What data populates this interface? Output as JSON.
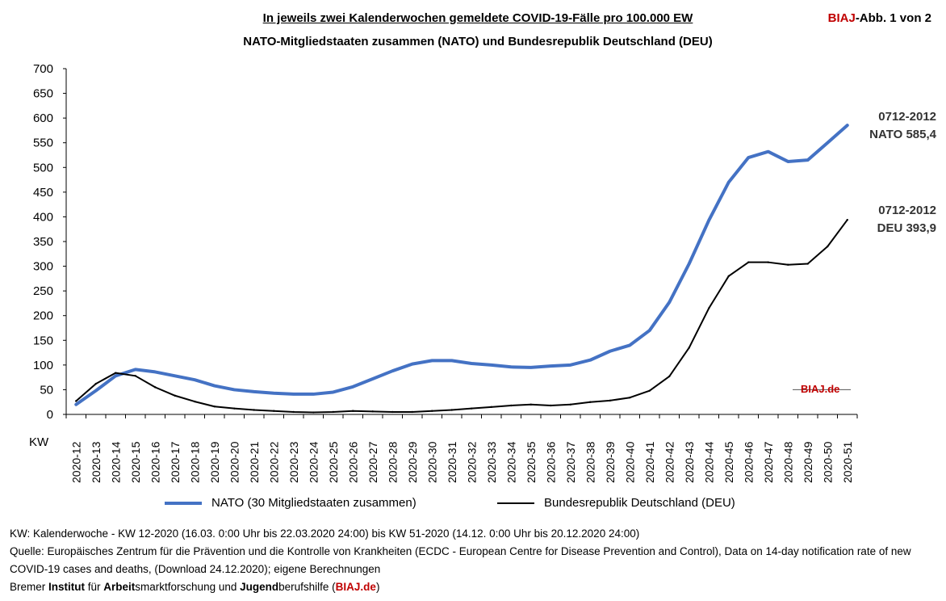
{
  "header": {
    "title": "In jeweils zwei Kalenderwochen gemeldete COVID-19-Fälle pro 100.000 EW",
    "subtitle": "NATO-Mitgliedstaaten zusammen (NATO) und Bundesrepublik Deutschland (DEU)",
    "badge_brand": "BIAJ",
    "badge_rest": "-Abb. 1 von 2"
  },
  "chart_data": {
    "type": "line",
    "title": "In jeweils zwei Kalenderwochen gemeldete COVID-19-Fälle pro 100.000 EW",
    "subtitle": "NATO-Mitgliedstaaten zusammen (NATO) und Bundesrepublik Deutschland (DEU)",
    "xlabel": "KW",
    "ylabel": "",
    "ylim": [
      0,
      700
    ],
    "yticks": [
      0,
      50,
      100,
      150,
      200,
      250,
      300,
      350,
      400,
      450,
      500,
      550,
      600,
      650,
      700
    ],
    "grid": false,
    "legend_position": "bottom",
    "x": [
      "2020-12",
      "2020-13",
      "2020-14",
      "2020-15",
      "2020-16",
      "2020-17",
      "2020-18",
      "2020-19",
      "2020-20",
      "2020-21",
      "2020-22",
      "2020-23",
      "2020-24",
      "2020-25",
      "2020-26",
      "2020-27",
      "2020-28",
      "2020-29",
      "2020-30",
      "2020-31",
      "2020-32",
      "2020-33",
      "2020-34",
      "2020-35",
      "2020-36",
      "2020-37",
      "2020-38",
      "2020-39",
      "2020-40",
      "2020-41",
      "2020-42",
      "2020-43",
      "2020-44",
      "2020-45",
      "2020-46",
      "2020-47",
      "2020-48",
      "2020-49",
      "2020-50",
      "2020-51"
    ],
    "series": [
      {
        "name": "NATO (30 Mitgliedstaaten zusammen)",
        "color": "#4472c4",
        "values": [
          20,
          48,
          78,
          91,
          86,
          78,
          70,
          58,
          50,
          46,
          43,
          41,
          41,
          45,
          56,
          72,
          88,
          102,
          109,
          109,
          103,
          100,
          96,
          95,
          98,
          100,
          110,
          128,
          140,
          170,
          227,
          305,
          393,
          470,
          520,
          532,
          512,
          515,
          550,
          585.4
        ]
      },
      {
        "name": "Bundesrepublik Deutschland (DEU)",
        "color": "#000000",
        "values": [
          27,
          62,
          84,
          78,
          55,
          38,
          26,
          16,
          12,
          9,
          7,
          5,
          4,
          5,
          7,
          6,
          5,
          5,
          7,
          9,
          12,
          15,
          18,
          20,
          18,
          20,
          25,
          28,
          34,
          48,
          77,
          135,
          215,
          280,
          308,
          308,
          303,
          305,
          340,
          393.9
        ]
      }
    ],
    "annotations": [
      {
        "period": "0712-2012",
        "label": "NATO 585,4"
      },
      {
        "period": "0712-2012",
        "label": "DEU 393,9"
      },
      {
        "text": "BIAJ.de"
      }
    ]
  },
  "notes": {
    "line1": "KW: Kalenderwoche - KW 12-2020 (16.03. 0:00 Uhr bis 22.03.2020 24:00) bis KW 51-2020 (14.12. 0:00 Uhr bis 20.12.2020 24:00)",
    "line2": "Quelle: Europäisches Zentrum für die Prävention und die Kontrolle von Krankheiten (ECDC - European Centre for Disease Prevention and Control), Data on 14-day notification rate of new COVID-19 cases and deaths, (Download 24.12.2020); eigene Berechnungen",
    "line3_parts": [
      "Bremer ",
      "Institut",
      " für ",
      "Arbeit",
      "smarktforschung und ",
      "Jugend",
      "berufshilfe (",
      "BIAJ.de",
      ")"
    ]
  }
}
